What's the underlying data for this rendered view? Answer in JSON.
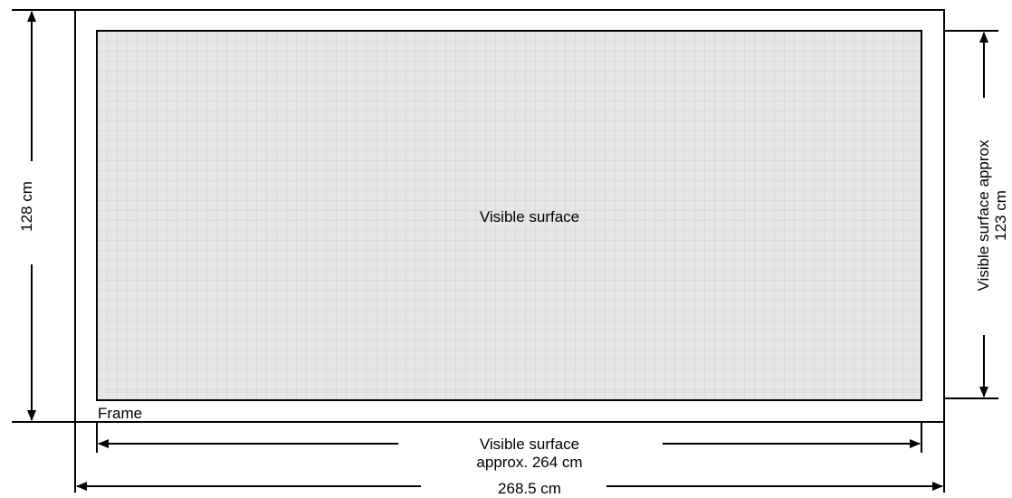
{
  "labels": {
    "visible_surface": "Visible surface",
    "frame": "Frame",
    "height": "128 cm",
    "visible_height_line1": "Visible surface approx",
    "visible_height_line2": "123 cm",
    "visible_width_line1": "Visible surface",
    "visible_width_line2": "approx. 264 cm",
    "total_width": "268.5 cm"
  },
  "colors": {
    "surface_fill": "#e6e6e6",
    "grid": "#c9c9c9",
    "stroke": "#000000"
  }
}
